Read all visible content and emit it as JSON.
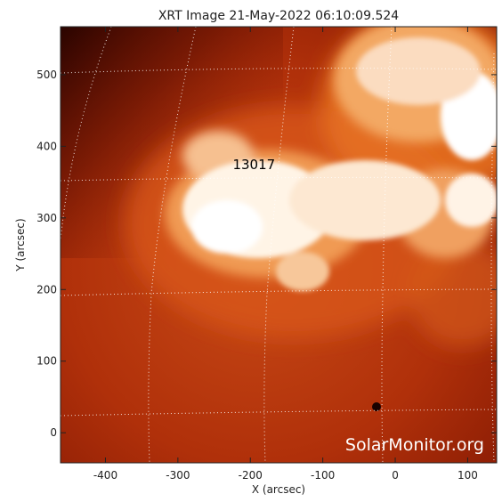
{
  "chart_data": {
    "type": "heatmap",
    "title": "XRT Image 21-May-2022 06:10:09.524",
    "xlabel": "X (arcsec)",
    "ylabel": "Y (arcsec)",
    "xlim": [
      -462,
      140
    ],
    "ylim": [
      -42,
      567
    ],
    "x_ticks": [
      {
        "value": -400,
        "label": "-400"
      },
      {
        "value": -300,
        "label": "-300"
      },
      {
        "value": -200,
        "label": "-200"
      },
      {
        "value": -100,
        "label": "-100"
      },
      {
        "value": 0,
        "label": "0"
      },
      {
        "value": 100,
        "label": "100"
      }
    ],
    "y_ticks": [
      {
        "value": 0,
        "label": "0"
      },
      {
        "value": 100,
        "label": "100"
      },
      {
        "value": 200,
        "label": "200"
      },
      {
        "value": 300,
        "label": "300"
      },
      {
        "value": 400,
        "label": "400"
      },
      {
        "value": 500,
        "label": "500"
      }
    ],
    "grid": "dotted heliographic grid",
    "colormap": [
      "#2a0400",
      "#8a1c04",
      "#c23f0e",
      "#e8721c",
      "#ffffff"
    ],
    "active_regions": [
      {
        "label": "13017",
        "x": -195,
        "y": 368
      }
    ],
    "watermark": "SolarMonitor.org"
  }
}
